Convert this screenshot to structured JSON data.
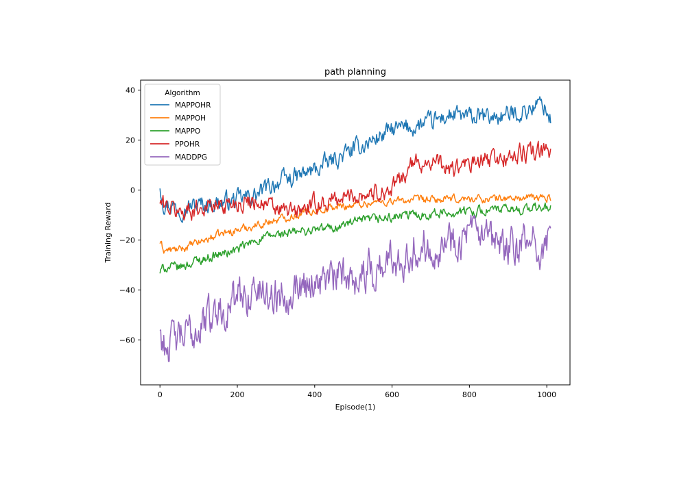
{
  "chart_data": {
    "type": "line",
    "title": "path planning",
    "xlabel": "Episode(1)",
    "ylabel": "Training Reward",
    "xlim": [
      -50,
      1060
    ],
    "ylim": [
      -78,
      44
    ],
    "xticks": [
      0,
      200,
      400,
      600,
      800,
      1000
    ],
    "yticks": [
      -60,
      -40,
      -20,
      0,
      20,
      40
    ],
    "xtick_labels": [
      "0",
      "200",
      "400",
      "600",
      "800",
      "1000"
    ],
    "ytick_labels": [
      "−60",
      "−40",
      "−20",
      "0",
      "20",
      "40"
    ],
    "legend": {
      "title": "Algorithm",
      "placement": "top-left"
    },
    "episodes": 1010,
    "series": [
      {
        "name": "MAPPOHR",
        "color": "#1f77b4",
        "anchors_x": [
          0,
          10,
          50,
          100,
          150,
          200,
          250,
          300,
          350,
          400,
          450,
          500,
          550,
          600,
          650,
          700,
          750,
          800,
          850,
          900,
          950,
          990,
          1010
        ],
        "anchors_y": [
          2,
          -5,
          -7,
          -6,
          -5,
          -4,
          -2,
          3,
          5,
          8,
          12,
          16,
          20,
          24,
          25,
          27,
          30,
          29,
          29,
          30,
          32,
          35,
          28
        ],
        "noise": 3.0
      },
      {
        "name": "MAPPOH",
        "color": "#ff7f0e",
        "anchors_x": [
          0,
          10,
          50,
          100,
          150,
          200,
          250,
          300,
          350,
          400,
          450,
          500,
          550,
          600,
          650,
          700,
          750,
          800,
          850,
          900,
          950,
          1000
        ],
        "anchors_y": [
          -21,
          -24,
          -24,
          -21,
          -18,
          -16,
          -14,
          -12,
          -10,
          -8,
          -7,
          -6,
          -5,
          -4.5,
          -4,
          -4,
          -3.8,
          -3.5,
          -3.5,
          -3.3,
          -3.2,
          -3
        ],
        "noise": 1.3
      },
      {
        "name": "MAPPO",
        "color": "#2ca02c",
        "anchors_x": [
          0,
          10,
          50,
          100,
          150,
          200,
          250,
          300,
          350,
          400,
          450,
          500,
          550,
          600,
          650,
          700,
          750,
          800,
          850,
          900,
          950,
          1000
        ],
        "anchors_y": [
          -33,
          -31,
          -31,
          -28,
          -26,
          -24,
          -20,
          -18,
          -17,
          -16,
          -15,
          -13,
          -12,
          -11,
          -10,
          -9.5,
          -9,
          -8.5,
          -8,
          -8,
          -7.5,
          -7
        ],
        "noise": 1.6
      },
      {
        "name": "PPOHR",
        "color": "#d62728",
        "anchors_x": [
          0,
          10,
          50,
          100,
          150,
          200,
          250,
          300,
          350,
          400,
          450,
          500,
          550,
          600,
          650,
          700,
          750,
          800,
          850,
          900,
          950,
          1000
        ],
        "anchors_y": [
          -5,
          -6,
          -9,
          -7,
          -6,
          -5,
          -4,
          -8,
          -9,
          -6,
          -4,
          -2,
          -1,
          0,
          10,
          12,
          8,
          10,
          12,
          13,
          15,
          15
        ],
        "noise": 3.0
      },
      {
        "name": "MADDPG",
        "color": "#9467bd",
        "anchors_x": [
          0,
          10,
          50,
          100,
          150,
          200,
          250,
          300,
          350,
          400,
          450,
          500,
          550,
          600,
          650,
          700,
          750,
          800,
          850,
          900,
          950,
          1000
        ],
        "anchors_y": [
          -56,
          -62,
          -60,
          -55,
          -48,
          -44,
          -40,
          -42,
          -38,
          -36,
          -36,
          -34,
          -32,
          -28,
          -24,
          -22,
          -20,
          -18,
          -22,
          -24,
          -22,
          -22
        ],
        "noise": 6.5
      }
    ]
  }
}
